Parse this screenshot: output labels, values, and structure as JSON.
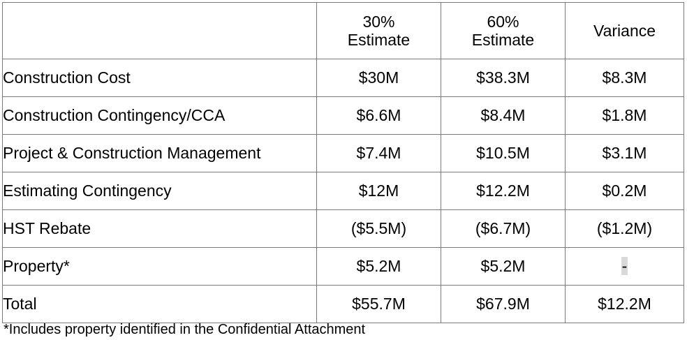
{
  "table": {
    "headers": [
      {
        "line1": "",
        "line2": ""
      },
      {
        "line1": "30%",
        "line2": "Estimate"
      },
      {
        "line1": "60%",
        "line2": "Estimate"
      },
      {
        "line1": "Variance",
        "line2": ""
      }
    ],
    "rows": [
      {
        "label": "Construction Cost",
        "est30": "$30M",
        "est60": "$38.3M",
        "variance": "$8.3M"
      },
      {
        "label": "Construction Contingency/CCA",
        "est30": "$6.6M",
        "est60": "$8.4M",
        "variance": "$1.8M"
      },
      {
        "label": "Project & Construction Management",
        "est30": "$7.4M",
        "est60": "$10.5M",
        "variance": "$3.1M"
      },
      {
        "label": "Estimating Contingency",
        "est30": "$12M",
        "est60": "$12.2M",
        "variance": "$0.2M"
      },
      {
        "label": "HST Rebate",
        "est30": "($5.5M)",
        "est60": "($6.7M)",
        "variance": "($1.2M)"
      },
      {
        "label": "Property*",
        "est30": "$5.2M",
        "est60": "$5.2M",
        "variance": "-"
      },
      {
        "label": "Total",
        "est30": "$55.7M",
        "est60": "$67.9M",
        "variance": "$12.2M"
      }
    ]
  },
  "footnote": "*Includes property identified in the Confidential Attachment"
}
